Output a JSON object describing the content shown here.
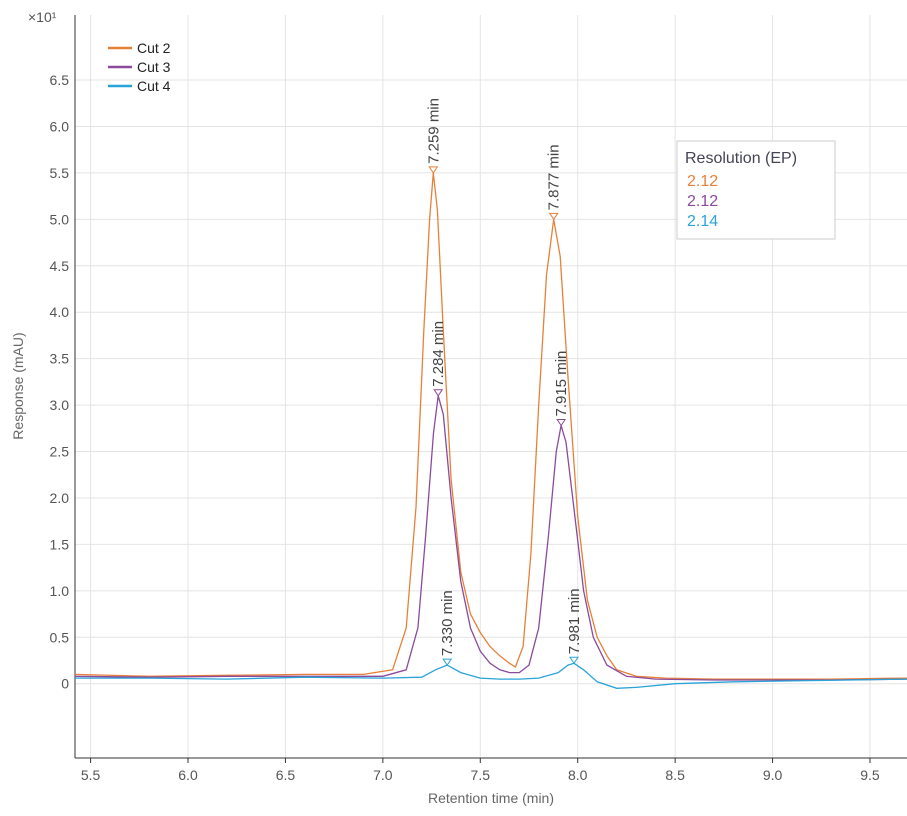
{
  "chart_data": {
    "type": "line",
    "x_label": "Retention time (min)",
    "y_label": "Response (mAU)",
    "y_multiplier": "×10¹",
    "xlim": [
      5.42,
      9.69
    ],
    "ylim": [
      -0.8,
      7.2
    ],
    "xticks": [
      5.5,
      {
        "value": 6,
        "label": "6.0"
      },
      6.5,
      {
        "value": 7,
        "label": "7.0"
      },
      7.5,
      {
        "value": 8,
        "label": "8.0"
      },
      8.5,
      {
        "value": 9,
        "label": "9.0"
      },
      9.5
    ],
    "yticks": [
      0,
      0.5,
      {
        "value": 1,
        "label": "1.0"
      },
      1.5,
      {
        "value": 2,
        "label": "2.0"
      },
      2.5,
      {
        "value": 3,
        "label": "3.0"
      },
      3.5,
      {
        "value": 4,
        "label": "4.0"
      },
      4.5,
      {
        "value": 5,
        "label": "5.0"
      },
      5.5,
      {
        "value": 6,
        "label": "6.0"
      },
      6.5
    ],
    "grid": true,
    "legend": "top-left",
    "series": [
      {
        "name": "Cut 2",
        "color": "#e8803a",
        "x": [
          5.42,
          5.8,
          6.2,
          6.6,
          6.9,
          7.05,
          7.12,
          7.17,
          7.21,
          7.24,
          7.259,
          7.28,
          7.31,
          7.35,
          7.4,
          7.45,
          7.5,
          7.55,
          7.6,
          7.65,
          7.68,
          7.72,
          7.76,
          7.8,
          7.84,
          7.877,
          7.91,
          7.95,
          8.0,
          8.05,
          8.1,
          8.15,
          8.2,
          8.3,
          8.45,
          8.7,
          9.0,
          9.3,
          9.69
        ],
        "values": [
          0.1,
          0.08,
          0.09,
          0.1,
          0.1,
          0.15,
          0.6,
          1.9,
          3.8,
          5.0,
          5.5,
          5.1,
          3.8,
          2.2,
          1.2,
          0.75,
          0.55,
          0.4,
          0.3,
          0.22,
          0.18,
          0.4,
          1.4,
          3.0,
          4.4,
          5.0,
          4.6,
          3.3,
          1.8,
          0.9,
          0.5,
          0.3,
          0.15,
          0.08,
          0.06,
          0.05,
          0.05,
          0.05,
          0.06
        ],
        "peaks": [
          {
            "x": 7.259,
            "y": 5.5,
            "label": "7.259 min"
          },
          {
            "x": 7.877,
            "y": 5.0,
            "label": "7.877 min"
          }
        ]
      },
      {
        "name": "Cut 3",
        "color": "#8b4a9c",
        "x": [
          5.42,
          5.8,
          6.2,
          6.6,
          7.0,
          7.12,
          7.18,
          7.22,
          7.26,
          7.284,
          7.31,
          7.35,
          7.4,
          7.45,
          7.5,
          7.55,
          7.6,
          7.65,
          7.7,
          7.75,
          7.8,
          7.85,
          7.89,
          7.915,
          7.94,
          7.98,
          8.03,
          8.08,
          8.15,
          8.25,
          8.4,
          8.7,
          9.0,
          9.3,
          9.69
        ],
        "values": [
          0.08,
          0.07,
          0.08,
          0.08,
          0.08,
          0.15,
          0.6,
          1.6,
          2.7,
          3.1,
          2.9,
          2.0,
          1.1,
          0.6,
          0.35,
          0.22,
          0.15,
          0.12,
          0.12,
          0.2,
          0.6,
          1.6,
          2.5,
          2.78,
          2.6,
          1.9,
          1.0,
          0.5,
          0.2,
          0.08,
          0.05,
          0.04,
          0.04,
          0.04,
          0.05
        ],
        "peaks": [
          {
            "x": 7.284,
            "y": 3.1,
            "label": "7.284 min"
          },
          {
            "x": 7.915,
            "y": 2.78,
            "label": "7.915 min"
          }
        ]
      },
      {
        "name": "Cut 4",
        "color": "#29a3d8",
        "x": [
          5.42,
          5.8,
          6.2,
          6.6,
          7.0,
          7.2,
          7.27,
          7.33,
          7.4,
          7.5,
          7.6,
          7.7,
          7.8,
          7.9,
          7.95,
          7.981,
          8.03,
          8.1,
          8.2,
          8.3,
          8.5,
          8.8,
          9.1,
          9.4,
          9.69
        ],
        "values": [
          0.06,
          0.06,
          0.05,
          0.07,
          0.06,
          0.07,
          0.15,
          0.2,
          0.12,
          0.06,
          0.05,
          0.05,
          0.06,
          0.12,
          0.2,
          0.22,
          0.15,
          0.02,
          -0.05,
          -0.04,
          0.0,
          0.02,
          0.03,
          0.04,
          0.05
        ],
        "peaks": [
          {
            "x": 7.33,
            "y": 0.2,
            "label": "7.330 min"
          },
          {
            "x": 7.981,
            "y": 0.22,
            "label": "7.981 min"
          }
        ]
      }
    ],
    "resolution_box": {
      "title": "Resolution (EP)",
      "values": [
        2.12,
        2.12,
        2.14
      ]
    }
  }
}
